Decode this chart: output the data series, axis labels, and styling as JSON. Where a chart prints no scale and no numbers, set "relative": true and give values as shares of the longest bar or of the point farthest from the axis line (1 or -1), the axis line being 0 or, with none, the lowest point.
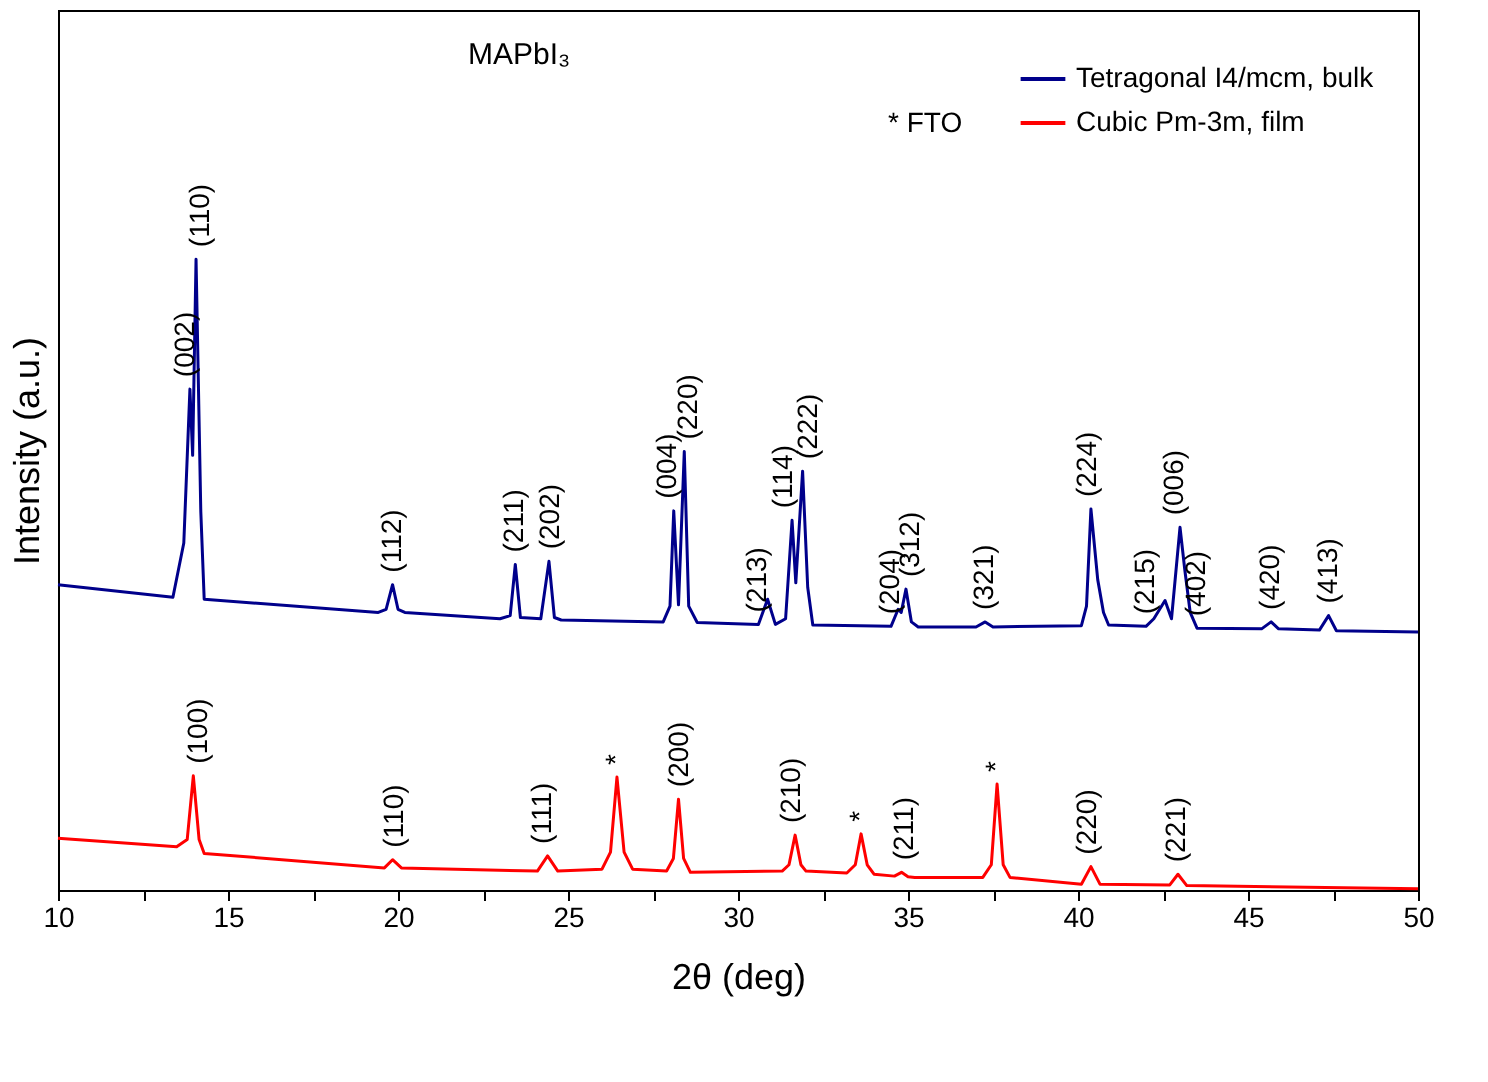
{
  "chart_data": {
    "type": "line",
    "title": "MAPbI₃",
    "xlabel": "2θ (deg)",
    "ylabel": "Intensity (a.u.)",
    "relative": true,
    "tick_labels": "x",
    "grid": false,
    "legend": "top right",
    "line_style": "solid",
    "marker": "none",
    "xlim": [
      10,
      50
    ],
    "xticks": [
      10,
      {
        "value": 12.5,
        "label": null
      },
      15,
      {
        "value": 17.5,
        "label": null
      },
      20,
      {
        "value": 22.5,
        "label": null
      },
      25,
      {
        "value": 27.5,
        "label": null
      },
      30,
      {
        "value": 32.5,
        "label": null
      },
      35,
      {
        "value": 37.5,
        "label": null
      },
      40,
      {
        "value": 42.5,
        "label": null
      },
      45,
      {
        "value": 47.5,
        "label": null
      },
      50
    ],
    "series": [
      {
        "name": "Tetragonal I4/mcm, bulk",
        "color": "#00008b",
        "x": [
          10,
          13.38,
          13.7,
          13.88,
          13.96,
          14.06,
          14.2,
          14.3,
          19.42,
          19.65,
          19.84,
          20.0,
          20.2,
          23.0,
          23.3,
          23.45,
          23.6,
          24.2,
          24.44,
          24.6,
          24.8,
          27.8,
          28.0,
          28.11,
          28.25,
          28.42,
          28.55,
          28.8,
          30.6,
          30.87,
          31.1,
          31.4,
          31.59,
          31.7,
          31.9,
          32.05,
          32.2,
          34.5,
          34.71,
          34.8,
          34.94,
          35.1,
          35.3,
          37.0,
          37.27,
          37.5,
          40.1,
          40.25,
          40.38,
          40.58,
          40.75,
          40.9,
          42.0,
          42.23,
          42.56,
          42.75,
          43.0,
          43.14,
          43.3,
          43.5,
          45.4,
          45.68,
          45.9,
          47.1,
          47.37,
          47.6,
          50
        ],
        "values": [
          0.484,
          0.464,
          0.55,
          0.794,
          0.689,
          1.0,
          0.6,
          0.461,
          0.44,
          0.445,
          0.484,
          0.445,
          0.44,
          0.43,
          0.435,
          0.516,
          0.432,
          0.43,
          0.521,
          0.432,
          0.428,
          0.425,
          0.45,
          0.601,
          0.452,
          0.695,
          0.45,
          0.424,
          0.421,
          0.461,
          0.421,
          0.43,
          0.586,
          0.487,
          0.664,
          0.48,
          0.42,
          0.418,
          0.445,
          0.44,
          0.477,
          0.425,
          0.417,
          0.417,
          0.425,
          0.417,
          0.419,
          0.45,
          0.604,
          0.492,
          0.44,
          0.42,
          0.418,
          0.43,
          0.459,
          0.43,
          0.575,
          0.508,
          0.44,
          0.415,
          0.414,
          0.425,
          0.414,
          0.412,
          0.435,
          0.411,
          0.409
        ]
      },
      {
        "name": "Cubic Pm-3m, film",
        "color": "#ff0000",
        "x": [
          10,
          13.49,
          13.8,
          13.98,
          14.15,
          14.3,
          19.6,
          19.84,
          20.1,
          24.1,
          24.4,
          24.7,
          26.0,
          26.25,
          26.44,
          26.65,
          26.9,
          27.9,
          28.1,
          28.25,
          28.4,
          28.6,
          31.3,
          31.5,
          31.68,
          31.85,
          32.0,
          33.2,
          33.45,
          33.62,
          33.8,
          34.0,
          34.6,
          34.81,
          35.0,
          35.2,
          37.2,
          37.45,
          37.62,
          37.8,
          38.0,
          40.1,
          40.38,
          40.65,
          42.7,
          42.94,
          43.2,
          50
        ],
        "values": [
          0.082,
          0.0685,
          0.08,
          0.181,
          0.08,
          0.058,
          0.035,
          0.048,
          0.035,
          0.03,
          0.054,
          0.03,
          0.033,
          0.06,
          0.179,
          0.06,
          0.033,
          0.03,
          0.05,
          0.144,
          0.05,
          0.028,
          0.03,
          0.04,
          0.087,
          0.04,
          0.03,
          0.027,
          0.04,
          0.089,
          0.04,
          0.025,
          0.022,
          0.028,
          0.021,
          0.02,
          0.02,
          0.04,
          0.168,
          0.04,
          0.02,
          0.009,
          0.037,
          0.009,
          0.008,
          0.025,
          0.007,
          0.002
        ]
      }
    ],
    "annotations": [
      {
        "text": "(002)",
        "x": 13.75,
        "y": 0.794
      },
      {
        "text": "(110)",
        "x": 14.2,
        "y": 1.0
      },
      {
        "text": "(112)",
        "x": 19.84,
        "y": 0.484
      },
      {
        "text": "(211)",
        "x": 23.45,
        "y": 0.516
      },
      {
        "text": "(202)",
        "x": 24.5,
        "y": 0.521
      },
      {
        "text": "(004)",
        "x": 27.95,
        "y": 0.601
      },
      {
        "text": "(220)",
        "x": 28.55,
        "y": 0.695
      },
      {
        "text": "(213)",
        "x": 30.6,
        "y": 0.421
      },
      {
        "text": "(114)",
        "x": 31.35,
        "y": 0.586
      },
      {
        "text": "(222)",
        "x": 32.1,
        "y": 0.664
      },
      {
        "text": "(204)",
        "x": 34.5,
        "y": 0.418
      },
      {
        "text": "(312)",
        "x": 35.1,
        "y": 0.477
      },
      {
        "text": "(321)",
        "x": 37.27,
        "y": 0.425
      },
      {
        "text": "(224)",
        "x": 40.3,
        "y": 0.604
      },
      {
        "text": "(215)",
        "x": 42.0,
        "y": 0.418
      },
      {
        "text": "(006)",
        "x": 42.85,
        "y": 0.575
      },
      {
        "text": "(402)",
        "x": 43.5,
        "y": 0.415
      },
      {
        "text": "(420)",
        "x": 45.68,
        "y": 0.425
      },
      {
        "text": "(413)",
        "x": 47.37,
        "y": 0.435
      },
      {
        "text": "(100)",
        "x": 14.15,
        "y": 0.181
      },
      {
        "text": "(110)",
        "x": 19.9,
        "y": 0.048
      },
      {
        "text": "(111)",
        "x": 24.25,
        "y": 0.054
      },
      {
        "text": "*",
        "x": 26.44,
        "y": 0.179
      },
      {
        "text": "(200)",
        "x": 28.3,
        "y": 0.144
      },
      {
        "text": "(210)",
        "x": 31.6,
        "y": 0.087
      },
      {
        "text": "*",
        "x": 33.62,
        "y": 0.089
      },
      {
        "text": "(211)",
        "x": 34.9,
        "y": 0.028
      },
      {
        "text": "*",
        "x": 37.62,
        "y": 0.168
      },
      {
        "text": "(220)",
        "x": 40.3,
        "y": 0.037
      },
      {
        "text": "(221)",
        "x": 42.9,
        "y": 0.025
      },
      "* FTO"
    ]
  }
}
